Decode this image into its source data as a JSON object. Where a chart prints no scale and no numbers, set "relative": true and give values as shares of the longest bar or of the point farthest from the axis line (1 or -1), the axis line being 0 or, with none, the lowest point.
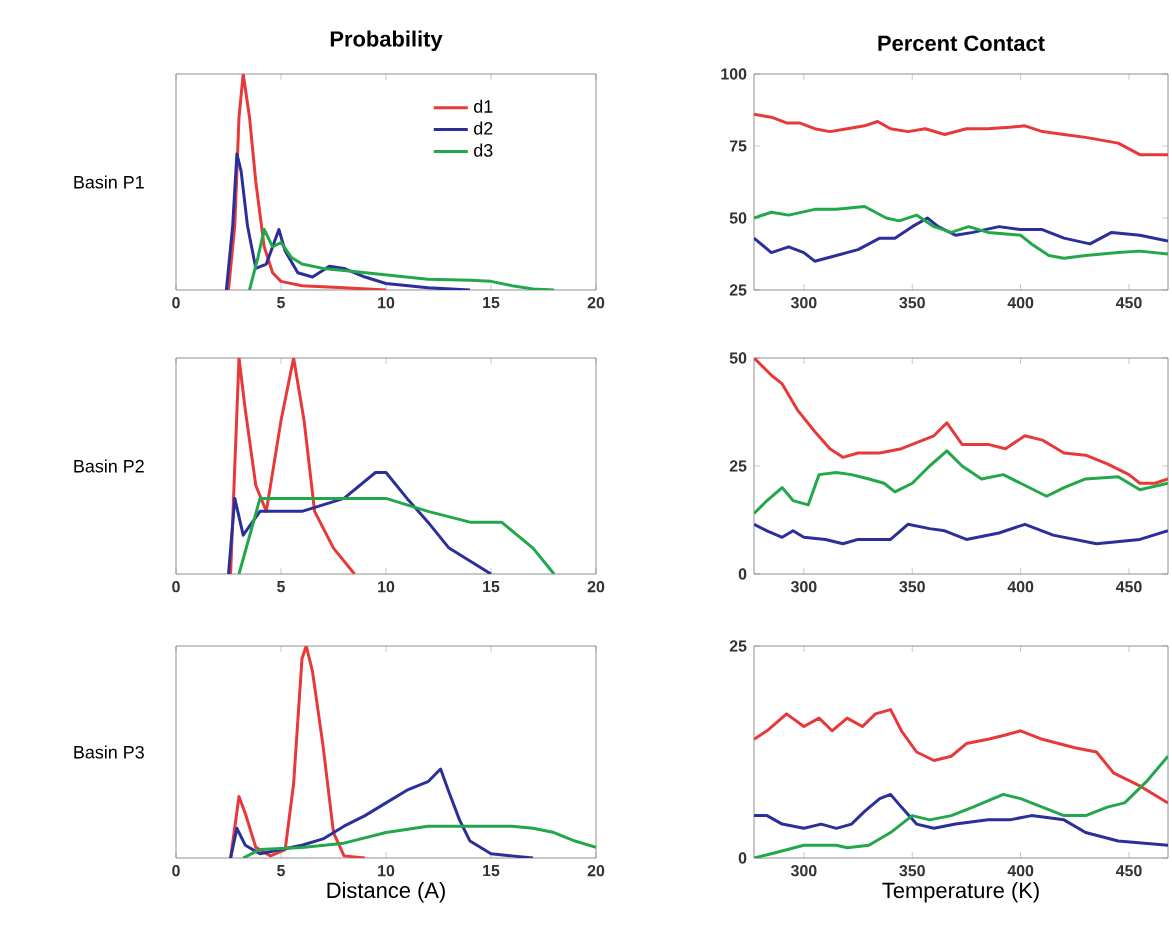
{
  "chart_data": [
    {
      "type": "line",
      "title": "Probability",
      "ylabel": "Basin P1",
      "xlim": [
        0,
        20
      ],
      "xticks": [
        0,
        5,
        10,
        15,
        20
      ],
      "relative": true,
      "legend": "top right",
      "series": [
        {
          "name": "d1",
          "color": "#e8393a",
          "x": [
            2.5,
            2.8,
            3.0,
            3.2,
            3.5,
            3.8,
            4.2,
            4.6,
            5,
            6,
            8,
            10
          ],
          "values": [
            0,
            0.3,
            0.8,
            1.0,
            0.8,
            0.5,
            0.2,
            0.08,
            0.04,
            0.02,
            0.01,
            0
          ]
        },
        {
          "name": "d2",
          "color": "#2b2f9a",
          "x": [
            2.4,
            2.7,
            2.9,
            3.1,
            3.4,
            3.8,
            4.3,
            4.9,
            5.2,
            5.8,
            6.5,
            7.3,
            8,
            9,
            10,
            12,
            14
          ],
          "values": [
            0,
            0.3,
            0.63,
            0.55,
            0.3,
            0.1,
            0.12,
            0.28,
            0.18,
            0.08,
            0.06,
            0.11,
            0.1,
            0.06,
            0.03,
            0.01,
            0
          ]
        },
        {
          "name": "d3",
          "color": "#22a84a",
          "x": [
            3.5,
            3.9,
            4.2,
            4.6,
            5,
            5.5,
            6,
            7,
            8,
            10,
            12,
            14,
            15,
            16,
            17,
            18
          ],
          "values": [
            0,
            0.15,
            0.28,
            0.2,
            0.22,
            0.15,
            0.12,
            0.1,
            0.09,
            0.07,
            0.05,
            0.045,
            0.04,
            0.02,
            0.005,
            0
          ]
        }
      ]
    },
    {
      "type": "line",
      "title": "Percent Contact",
      "xlim": [
        277,
        468
      ],
      "xticks": [
        300,
        350,
        400,
        450
      ],
      "ylim": [
        25,
        100
      ],
      "yticks": [
        25,
        50,
        75,
        100
      ],
      "series": [
        {
          "color": "#e8393a",
          "x": [
            277,
            285,
            292,
            298,
            305,
            312,
            320,
            328,
            334,
            340,
            348,
            356,
            365,
            375,
            385,
            395,
            402,
            410,
            420,
            430,
            445,
            455,
            468
          ],
          "values": [
            86,
            85,
            83,
            83,
            81,
            80,
            81,
            82,
            83.5,
            81,
            80,
            81,
            79,
            81,
            81,
            81.5,
            82,
            80,
            79,
            78,
            76,
            72,
            72
          ]
        },
        {
          "color": "#2b2f9a",
          "x": [
            277,
            285,
            293,
            300,
            305,
            315,
            325,
            335,
            342,
            350,
            357,
            362,
            370,
            378,
            390,
            400,
            410,
            420,
            432,
            442,
            455,
            468
          ],
          "values": [
            43,
            38,
            40,
            38,
            35,
            37,
            39,
            43,
            43,
            47,
            50,
            47,
            44,
            45,
            47,
            46,
            46,
            43,
            41,
            45,
            44,
            42
          ]
        },
        {
          "color": "#22a84a",
          "x": [
            277,
            285,
            293,
            305,
            315,
            328,
            338,
            344,
            352,
            360,
            368,
            376,
            385,
            400,
            405,
            413,
            420,
            430,
            445,
            455,
            468
          ],
          "values": [
            50,
            52,
            51,
            53,
            53,
            54,
            50,
            49,
            51,
            47,
            45,
            47,
            45,
            44,
            41,
            37,
            36,
            37,
            38,
            38.5,
            37.5
          ]
        }
      ]
    },
    {
      "type": "line",
      "ylabel": "Basin P2",
      "xlim": [
        0,
        20
      ],
      "xticks": [
        0,
        5,
        10,
        15,
        20
      ],
      "relative": true,
      "series": [
        {
          "color": "#e8393a",
          "x": [
            2.6,
            3.0,
            3.3,
            3.8,
            4.3,
            5,
            5.6,
            6.1,
            6.6,
            7.5,
            8.5
          ],
          "values": [
            0,
            1,
            0.76,
            0.41,
            0.29,
            0.71,
            1,
            0.71,
            0.29,
            0.12,
            0
          ]
        },
        {
          "color": "#2b2f9a",
          "x": [
            2.5,
            2.8,
            3.2,
            4,
            6,
            8,
            9.5,
            10,
            11,
            12,
            13,
            14,
            15
          ],
          "values": [
            0,
            0.35,
            0.18,
            0.29,
            0.29,
            0.35,
            0.47,
            0.47,
            0.35,
            0.24,
            0.12,
            0.06,
            0
          ]
        },
        {
          "color": "#22a84a",
          "x": [
            3,
            4,
            6,
            8,
            10,
            12,
            14,
            15.5,
            17,
            18
          ],
          "values": [
            0,
            0.35,
            0.35,
            0.35,
            0.35,
            0.29,
            0.24,
            0.24,
            0.12,
            0
          ]
        }
      ]
    },
    {
      "type": "line",
      "xlim": [
        277,
        468
      ],
      "xticks": [
        300,
        350,
        400,
        450
      ],
      "ylim": [
        0,
        50
      ],
      "yticks": [
        0,
        25,
        50
      ],
      "series": [
        {
          "color": "#e8393a",
          "x": [
            277,
            285,
            290,
            297,
            305,
            312,
            318,
            325,
            335,
            345,
            355,
            360,
            366,
            373,
            385,
            393,
            402,
            410,
            420,
            430,
            440,
            450,
            455,
            462,
            468
          ],
          "values": [
            50,
            46,
            44,
            38,
            33,
            29,
            27,
            28,
            28,
            29,
            31,
            32,
            35,
            30,
            30,
            29,
            32,
            31,
            28,
            27.5,
            25.5,
            23,
            21,
            21,
            22
          ]
        },
        {
          "color": "#2b2f9a",
          "x": [
            277,
            283,
            290,
            295,
            300,
            310,
            318,
            325,
            340,
            348,
            358,
            365,
            375,
            390,
            402,
            415,
            435,
            455,
            468
          ],
          "values": [
            11.5,
            10,
            8.5,
            10,
            8.5,
            8,
            7,
            8,
            8,
            11.5,
            10.5,
            10,
            8,
            9.5,
            11.5,
            9,
            7,
            8,
            10
          ]
        },
        {
          "color": "#22a84a",
          "x": [
            277,
            283,
            290,
            295,
            302,
            307,
            315,
            322,
            330,
            337,
            342,
            350,
            358,
            366,
            373,
            382,
            392,
            400,
            412,
            420,
            430,
            445,
            455,
            468
          ],
          "values": [
            14,
            17,
            20,
            17,
            16,
            23,
            23.5,
            23,
            22,
            21,
            19,
            21,
            25,
            28.5,
            25,
            22,
            23,
            21,
            18,
            20,
            22,
            22.5,
            19.5,
            21
          ]
        }
      ]
    },
    {
      "type": "line",
      "ylabel": "Basin P3",
      "xlabel": "Distance (A)",
      "xlim": [
        0,
        20
      ],
      "xticks": [
        0,
        5,
        10,
        15,
        20
      ],
      "relative": true,
      "series": [
        {
          "color": "#e8393a",
          "x": [
            2.6,
            3.0,
            3.3,
            3.8,
            4.5,
            5.2,
            5.6,
            6.0,
            6.2,
            6.5,
            7,
            7.5,
            8,
            9
          ],
          "values": [
            0,
            0.29,
            0.21,
            0.05,
            0.01,
            0.04,
            0.35,
            0.94,
            1,
            0.88,
            0.53,
            0.12,
            0.01,
            0
          ]
        },
        {
          "color": "#2b2f9a",
          "x": [
            2.6,
            2.9,
            3.3,
            4,
            5,
            6,
            7,
            8,
            9,
            10,
            11,
            12,
            12.6,
            13,
            13.5,
            14,
            15,
            16,
            17
          ],
          "values": [
            0,
            0.14,
            0.06,
            0.02,
            0.04,
            0.06,
            0.09,
            0.15,
            0.2,
            0.26,
            0.32,
            0.36,
            0.42,
            0.31,
            0.18,
            0.08,
            0.02,
            0.01,
            0
          ]
        },
        {
          "color": "#22a84a",
          "x": [
            3.2,
            4,
            6,
            8,
            10,
            12,
            13,
            15,
            16,
            17,
            18,
            19,
            20
          ],
          "values": [
            0,
            0.04,
            0.05,
            0.07,
            0.12,
            0.15,
            0.15,
            0.15,
            0.15,
            0.14,
            0.12,
            0.08,
            0.05
          ]
        }
      ]
    },
    {
      "type": "line",
      "xlabel": "Temperature (K)",
      "xlim": [
        277,
        468
      ],
      "xticks": [
        300,
        350,
        400,
        450
      ],
      "ylim": [
        0,
        25
      ],
      "yticks": [
        0,
        25
      ],
      "series": [
        {
          "color": "#e8393a",
          "x": [
            277,
            283,
            292,
            300,
            307,
            313,
            320,
            327,
            333,
            340,
            345,
            352,
            360,
            368,
            375,
            385,
            393,
            400,
            410,
            425,
            435,
            443,
            455,
            468
          ],
          "values": [
            14,
            15,
            17,
            15.5,
            16.5,
            15,
            16.5,
            15.5,
            17,
            17.5,
            15,
            12.5,
            11.5,
            12,
            13.5,
            14,
            14.5,
            15,
            14,
            13,
            12.5,
            10,
            8.5,
            6.5
          ]
        },
        {
          "color": "#2b2f9a",
          "x": [
            277,
            283,
            290,
            300,
            308,
            315,
            322,
            328,
            335,
            340,
            345,
            352,
            360,
            370,
            385,
            395,
            405,
            420,
            430,
            445,
            468
          ],
          "values": [
            5,
            5,
            4,
            3.5,
            4,
            3.5,
            4,
            5.5,
            7,
            7.5,
            6,
            4,
            3.5,
            4,
            4.5,
            4.5,
            5,
            4.5,
            3,
            2,
            1.5
          ]
        },
        {
          "color": "#22a84a",
          "x": [
            277,
            285,
            300,
            315,
            320,
            330,
            340,
            350,
            358,
            368,
            378,
            392,
            400,
            410,
            420,
            430,
            440,
            448,
            458,
            468
          ],
          "values": [
            0,
            0.5,
            1.5,
            1.5,
            1.2,
            1.5,
            3,
            5,
            4.5,
            5,
            6,
            7.5,
            7,
            6,
            5,
            5,
            6,
            6.5,
            9,
            12
          ]
        }
      ]
    }
  ]
}
